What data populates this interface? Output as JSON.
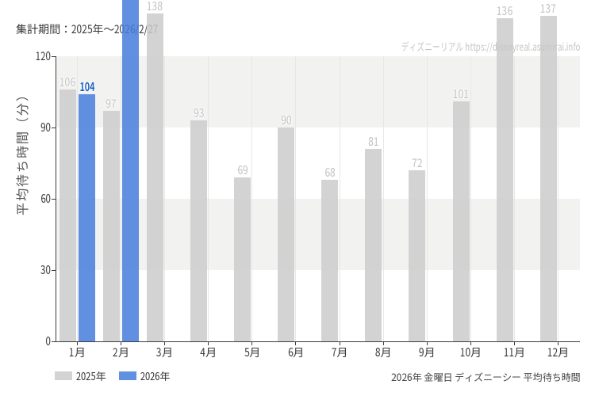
{
  "page": {
    "background": "#ffffff"
  },
  "header": {
    "title": "集計期間：2025年～2026/2/27"
  },
  "watermark": {
    "brand": "ディズニーリアル",
    "url_text": "https://disneyreal.asumirai.info"
  },
  "caption": {
    "text": "2026年 金曜日 ディズニーシー 平均待ち時間"
  },
  "legend": {
    "items": [
      {
        "label": "2025年",
        "color": "#d3d3d3"
      },
      {
        "label": "2026年",
        "color": "#6090e0"
      }
    ]
  },
  "chart_data": {
    "type": "bar",
    "categories": [
      "1月",
      "2月",
      "3月",
      "4月",
      "5月",
      "6月",
      "7月",
      "8月",
      "9月",
      "10月",
      "11月",
      "12月"
    ],
    "series": [
      {
        "name": "2025年",
        "color": "rgba(203,203,203,0.85)",
        "label_color": "#c3c3c3",
        "values": [
          106,
          97,
          138,
          93,
          69,
          90,
          68,
          81,
          72,
          101,
          136,
          137
        ]
      },
      {
        "name": "2026年",
        "color": "rgba(70,124,220,0.85)",
        "label_color": "#2163c4",
        "bold_labels": true,
        "values": [
          104,
          150,
          null,
          null,
          null,
          null,
          null,
          null,
          null,
          null,
          null,
          null
        ],
        "note": "2月 bar is clipped at the top edge of the image; its value label is not visible (150 is an estimate)"
      }
    ],
    "ylabel": "平均待ち時間（分）",
    "yticks": [
      0,
      30,
      60,
      90,
      120
    ],
    "ylim": [
      0,
      120
    ],
    "shaded_bands": [
      [
        30,
        60
      ],
      [
        90,
        120
      ]
    ],
    "grid": "vertical-lines-at-month-centers",
    "legend_position": "bottom-left"
  }
}
